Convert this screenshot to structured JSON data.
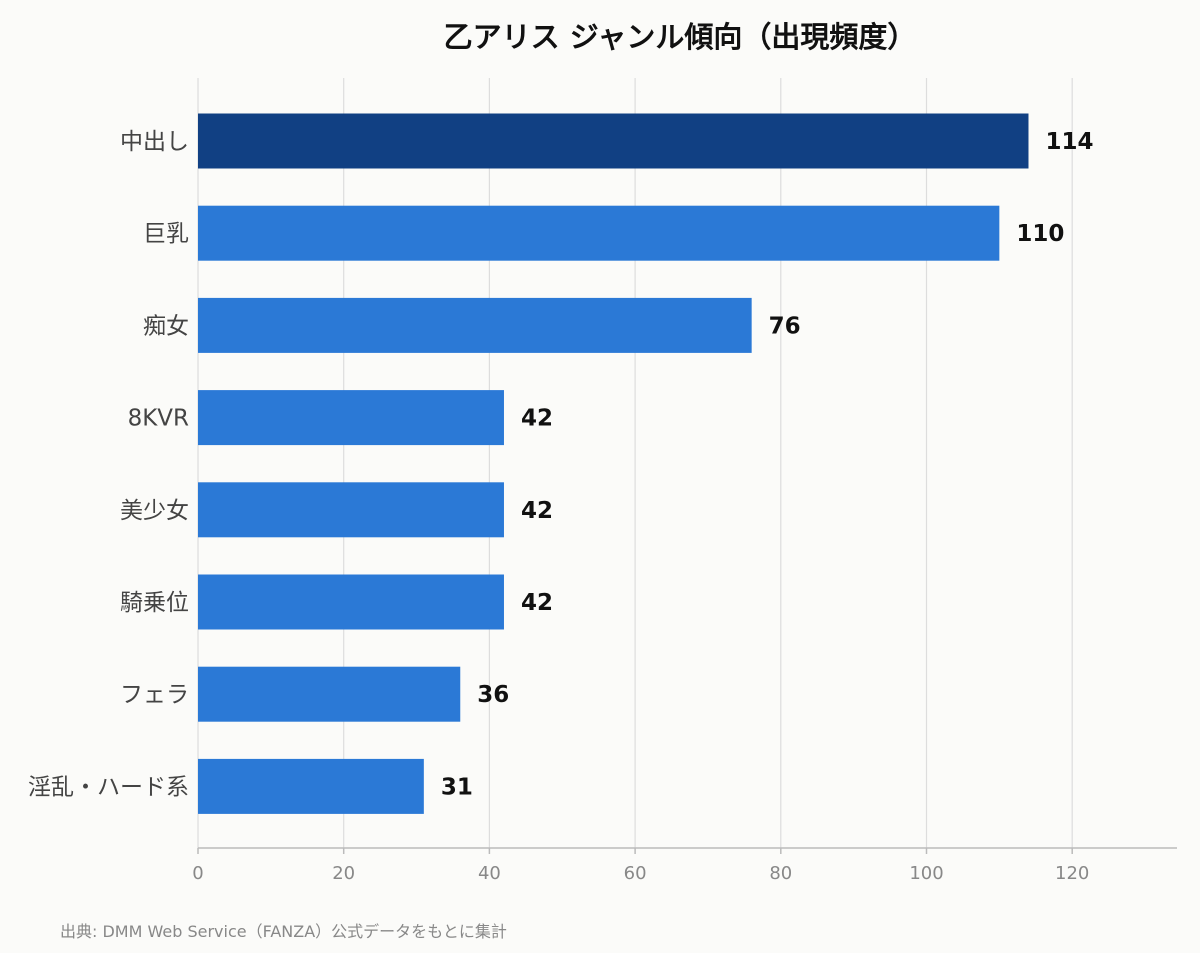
{
  "colors": {
    "background": "#fbfbf9",
    "bar": "#2b79d6",
    "bar_highlight": "#114083",
    "grid": "#dddddd",
    "axis": "#bbbbbb",
    "category_label": "#444444",
    "tick_label": "#888888",
    "value_label": "#111111"
  },
  "chart_data": {
    "type": "bar",
    "orientation": "horizontal",
    "title": "乙アリス ジャンル傾向（出現頻度）",
    "categories": [
      "中出し",
      "巨乳",
      "痴女",
      "8KVR",
      "美少女",
      "騎乗位",
      "フェラ",
      "淫乱・ハード系"
    ],
    "values": [
      114,
      110,
      76,
      42,
      42,
      42,
      36,
      31
    ],
    "highlight_index": 0,
    "xlabel": "",
    "ylabel": "",
    "xlim": [
      0,
      134
    ],
    "xticks": [
      0,
      20,
      40,
      60,
      80,
      100,
      120
    ],
    "grid": "vertical",
    "legend": "none",
    "data_labels": true
  },
  "footer": {
    "source": "出典: DMM Web Service（FANZA）公式データをもとに集計"
  }
}
